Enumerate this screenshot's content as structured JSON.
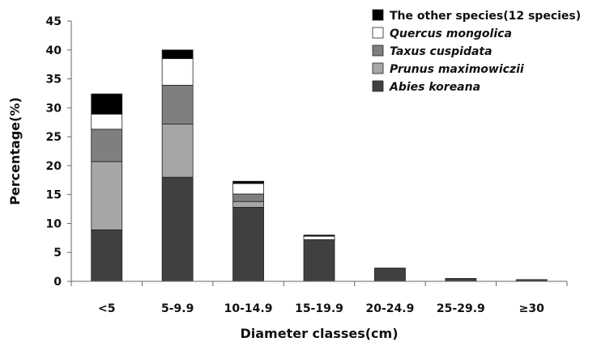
{
  "chart_data": {
    "type": "bar",
    "stacked": true,
    "xlabel": "Diameter classes(cm)",
    "ylabel": "Percentage(%)",
    "ylim": [
      0,
      45
    ],
    "yticks": [
      0,
      5,
      10,
      15,
      20,
      25,
      30,
      35,
      40,
      45
    ],
    "categories": [
      "<5",
      "5-9.9",
      "10-14.9",
      "15-19.9",
      "20-24.9",
      "25-29.9",
      "≥30"
    ],
    "grid": false,
    "legend_position": "top-right",
    "series": [
      {
        "name": "Abies koreana",
        "italic": true,
        "color": "#404040",
        "values": [
          8.9,
          18.0,
          12.8,
          7.2,
          2.3,
          0.5,
          0.3
        ]
      },
      {
        "name": "Prunus maximowiczii",
        "italic": true,
        "color": "#a6a6a6",
        "values": [
          11.8,
          9.2,
          1.0,
          0.0,
          0.0,
          0.0,
          0.0
        ]
      },
      {
        "name": "Taxus cuspidata",
        "italic": true,
        "color": "#7f7f7f",
        "values": [
          5.6,
          6.7,
          1.3,
          0.0,
          0.0,
          0.0,
          0.0
        ]
      },
      {
        "name": "Quercus mongolica",
        "italic": true,
        "color": "#ffffff",
        "values": [
          2.6,
          4.6,
          1.8,
          0.6,
          0.0,
          0.0,
          0.0
        ]
      },
      {
        "name": "The other species(12 species)",
        "italic": false,
        "color": "#000000",
        "values": [
          3.5,
          1.5,
          0.4,
          0.2,
          0.0,
          0.0,
          0.0
        ]
      }
    ]
  }
}
